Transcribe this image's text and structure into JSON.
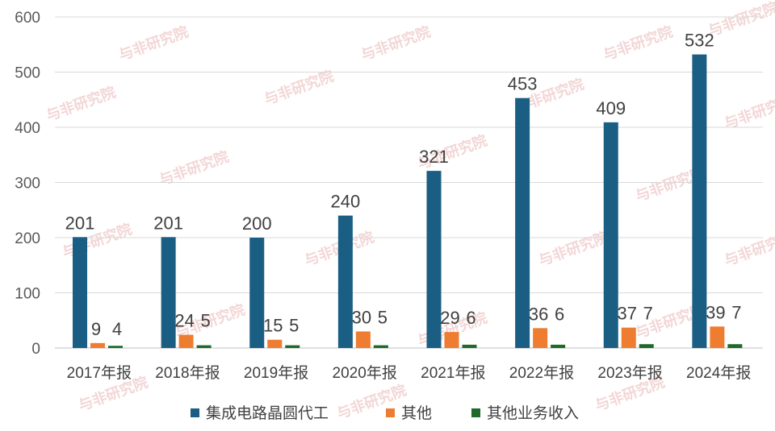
{
  "chart_data": {
    "type": "bar",
    "categories": [
      "2017年报",
      "2018年报",
      "2019年报",
      "2020年报",
      "2021年报",
      "2022年报",
      "2023年报",
      "2024年报"
    ],
    "series": [
      {
        "name": "集成电路晶圆代工",
        "color": "#1a5e83",
        "values": [
          201,
          201,
          200,
          240,
          321,
          453,
          409,
          532
        ]
      },
      {
        "name": "其他",
        "color": "#ee7d31",
        "values": [
          9,
          24,
          15,
          30,
          29,
          36,
          37,
          39
        ]
      },
      {
        "name": "其他业务收入",
        "color": "#1f6a2b",
        "values": [
          4,
          5,
          5,
          5,
          6,
          6,
          7,
          7
        ]
      }
    ],
    "ylim": [
      0,
      600
    ],
    "yticks": [
      0,
      100,
      200,
      300,
      400,
      500,
      600
    ],
    "grid": true,
    "legend_position": "bottom",
    "watermark": "与非研究院"
  }
}
